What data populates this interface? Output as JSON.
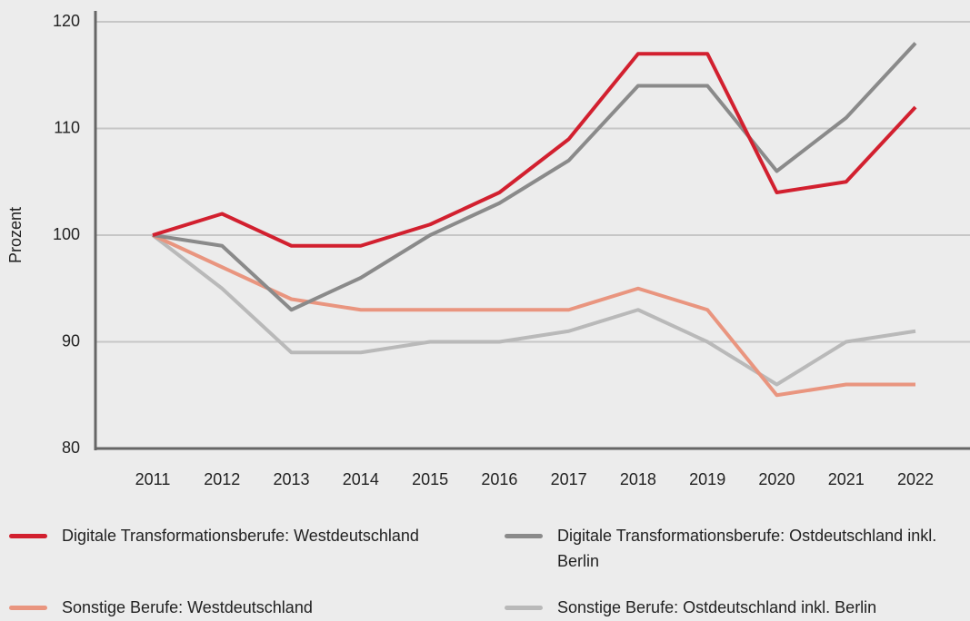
{
  "chart_data": {
    "type": "line",
    "ylabel": "Prozent",
    "categories": [
      "2011",
      "2012",
      "2013",
      "2014",
      "2015",
      "2016",
      "2017",
      "2018",
      "2019",
      "2020",
      "2021",
      "2022"
    ],
    "series": [
      {
        "name": "Digitale Transformationsberufe: Westdeutschland",
        "color": "#d2202f",
        "values": [
          100,
          102,
          99,
          99,
          101,
          104,
          109,
          117,
          117,
          104,
          105,
          112
        ]
      },
      {
        "name": "Digitale Transformationsberufe: Ostdeutschland inkl. Berlin",
        "color": "#8a8a8a",
        "values": [
          100,
          99,
          93,
          96,
          100,
          103,
          107,
          114,
          114,
          106,
          111,
          118
        ]
      },
      {
        "name": "Sonstige Berufe: Westdeutschland",
        "color": "#e9957f",
        "values": [
          100,
          97,
          94,
          93,
          93,
          93,
          93,
          95,
          93,
          85,
          86,
          86
        ]
      },
      {
        "name": "Sonstige Berufe: Ostdeutschland inkl. Berlin",
        "color": "#b9b9b9",
        "values": [
          100,
          95,
          89,
          89,
          90,
          90,
          91,
          93,
          90,
          86,
          90,
          91
        ]
      }
    ],
    "ylim": [
      80,
      120
    ],
    "yticks": [
      80,
      90,
      100,
      110,
      120
    ],
    "grid": true
  }
}
